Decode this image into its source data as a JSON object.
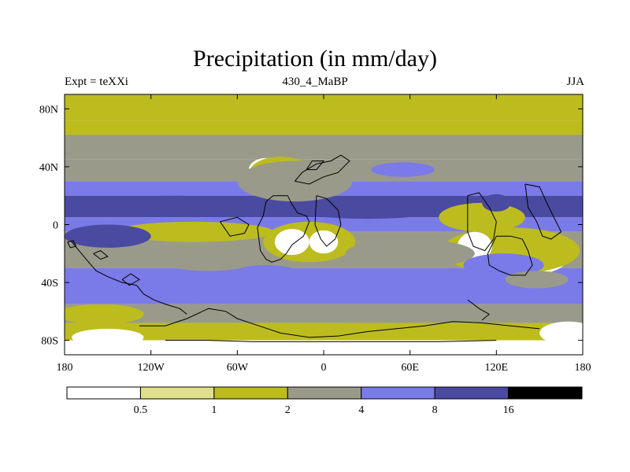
{
  "chart_data": {
    "type": "heatmap",
    "title": "Precipitation (in mm/day)",
    "subtitle_left": "Expt = teXXi",
    "subtitle_center": "430_4_MaBP",
    "subtitle_right": "JJA",
    "variable": "precipitation",
    "units": "mm/day",
    "x_range": [
      -180,
      180
    ],
    "y_range": [
      -90,
      90
    ],
    "x_ticks": [
      {
        "value": -180,
        "label": "180"
      },
      {
        "value": -120,
        "label": "120W"
      },
      {
        "value": -60,
        "label": "60W"
      },
      {
        "value": 0,
        "label": "0"
      },
      {
        "value": 60,
        "label": "60E"
      },
      {
        "value": 120,
        "label": "120E"
      },
      {
        "value": 180,
        "label": "180"
      }
    ],
    "y_ticks": [
      {
        "value": 80,
        "label": "80N"
      },
      {
        "value": 40,
        "label": "40N"
      },
      {
        "value": 0,
        "label": "0"
      },
      {
        "value": -40,
        "label": "40S"
      },
      {
        "value": -80,
        "label": "80S"
      }
    ],
    "levels": [
      0.5,
      1,
      2,
      4,
      8,
      16
    ],
    "level_labels": [
      "0.5",
      "1",
      "2",
      "4",
      "8",
      "16"
    ],
    "colors": [
      "#ffffff",
      "#e0e08a",
      "#bcbc1e",
      "#9a9a8a",
      "#7a7ae8",
      "#4a4aa0",
      "#000000"
    ],
    "zonal_bands": [
      {
        "lat_from": 90,
        "lat_to": 72,
        "mm_per_day": 1.0
      },
      {
        "lat_from": 72,
        "lat_to": 62,
        "mm_per_day": 1.5
      },
      {
        "lat_from": 62,
        "lat_to": 45,
        "mm_per_day": 3.0
      },
      {
        "lat_from": 45,
        "lat_to": 30,
        "mm_per_day": 2.5
      },
      {
        "lat_from": 30,
        "lat_to": 20,
        "mm_per_day": 5.0
      },
      {
        "lat_from": 20,
        "lat_to": 5,
        "mm_per_day": 8.0
      },
      {
        "lat_from": 5,
        "lat_to": -5,
        "mm_per_day": 5.0
      },
      {
        "lat_from": -5,
        "lat_to": -30,
        "mm_per_day": 2.5
      },
      {
        "lat_from": -30,
        "lat_to": -55,
        "mm_per_day": 5.0
      },
      {
        "lat_from": -55,
        "lat_to": -68,
        "mm_per_day": 3.0
      },
      {
        "lat_from": -68,
        "lat_to": -80,
        "mm_per_day": 1.5
      },
      {
        "lat_from": -80,
        "lat_to": -90,
        "mm_per_day": 0.3
      }
    ],
    "patches": [
      {
        "lon": -40,
        "lat": 38,
        "rx": 12,
        "ry": 8,
        "mm_per_day": 0.3
      },
      {
        "lon": -30,
        "lat": 35,
        "rx": 22,
        "ry": 12,
        "mm_per_day": 1.5
      },
      {
        "lon": -20,
        "lat": 30,
        "rx": 40,
        "ry": 14,
        "mm_per_day": 2.0
      },
      {
        "lon": -10,
        "lat": -12,
        "rx": 32,
        "ry": 14,
        "mm_per_day": 1.5
      },
      {
        "lon": -22,
        "lat": -12,
        "rx": 12,
        "ry": 9,
        "mm_per_day": 0.3
      },
      {
        "lon": 0,
        "lat": -12,
        "rx": 10,
        "ry": 8,
        "mm_per_day": 0.3
      },
      {
        "lon": 148,
        "lat": -22,
        "rx": 22,
        "ry": 12,
        "mm_per_day": 0.3
      },
      {
        "lon": 130,
        "lat": -18,
        "rx": 48,
        "ry": 16,
        "mm_per_day": 1.5
      },
      {
        "lon": 105,
        "lat": -15,
        "rx": 12,
        "ry": 10,
        "mm_per_day": 0.3
      },
      {
        "lon": -90,
        "lat": -5,
        "rx": 55,
        "ry": 7,
        "mm_per_day": 1.5
      },
      {
        "lon": -80,
        "lat": -22,
        "rx": 40,
        "ry": 10,
        "mm_per_day": 2.0
      },
      {
        "lon": 60,
        "lat": -20,
        "rx": 45,
        "ry": 10,
        "mm_per_day": 2.0
      },
      {
        "lon": -150,
        "lat": -8,
        "rx": 30,
        "ry": 8,
        "mm_per_day": 10.0
      },
      {
        "lon": -105,
        "lat": 14,
        "rx": 45,
        "ry": 6,
        "mm_per_day": 10.0
      },
      {
        "lon": 30,
        "lat": 10,
        "rx": 50,
        "ry": 6,
        "mm_per_day": 10.0
      },
      {
        "lon": 55,
        "lat": 38,
        "rx": 22,
        "ry": 5,
        "mm_per_day": 5.0
      },
      {
        "lon": 110,
        "lat": 5,
        "rx": 30,
        "ry": 10,
        "mm_per_day": 1.5
      },
      {
        "lon": 125,
        "lat": -28,
        "rx": 28,
        "ry": 8,
        "mm_per_day": 5.0
      },
      {
        "lon": 148,
        "lat": -38,
        "rx": 22,
        "ry": 6,
        "mm_per_day": 2.0
      },
      {
        "lon": -40,
        "lat": -35,
        "rx": 25,
        "ry": 7,
        "mm_per_day": 5.0
      },
      {
        "lon": -90,
        "lat": -60,
        "rx": 30,
        "ry": 5,
        "mm_per_day": 2.0
      },
      {
        "lon": -155,
        "lat": -62,
        "rx": 30,
        "ry": 7,
        "mm_per_day": 1.5
      },
      {
        "lon": 170,
        "lat": -75,
        "rx": 20,
        "ry": 8,
        "mm_per_day": 0.3
      },
      {
        "lon": -150,
        "lat": -78,
        "rx": 25,
        "ry": 6,
        "mm_per_day": 0.3
      },
      {
        "lon": 30,
        "lat": -73,
        "rx": 60,
        "ry": 5,
        "mm_per_day": 1.0
      },
      {
        "lon": 120,
        "lat": 15,
        "rx": 10,
        "ry": 6,
        "mm_per_day": 10.0
      },
      {
        "lon": 170,
        "lat": 12,
        "rx": 14,
        "ry": 6,
        "mm_per_day": 10.0
      }
    ],
    "coastlines": [
      [
        [
          -40,
          16
        ],
        [
          -35,
          20
        ],
        [
          -25,
          20
        ],
        [
          -22,
          14
        ],
        [
          -18,
          8
        ],
        [
          -12,
          6
        ],
        [
          -10,
          2
        ],
        [
          -14,
          -8
        ],
        [
          -22,
          -14
        ],
        [
          -26,
          -20
        ],
        [
          -30,
          -24
        ],
        [
          -36,
          -26
        ],
        [
          -40,
          -24
        ],
        [
          -44,
          -18
        ],
        [
          -45,
          -10
        ],
        [
          -46,
          -2
        ],
        [
          -42,
          6
        ],
        [
          -40,
          16
        ]
      ],
      [
        [
          -20,
          30
        ],
        [
          -15,
          36
        ],
        [
          -5,
          42
        ],
        [
          5,
          44
        ],
        [
          12,
          48
        ],
        [
          18,
          44
        ],
        [
          10,
          36
        ],
        [
          0,
          33
        ],
        [
          -10,
          28
        ],
        [
          -20,
          30
        ]
      ],
      [
        [
          -5,
          20
        ],
        [
          2,
          18
        ],
        [
          10,
          10
        ],
        [
          12,
          0
        ],
        [
          8,
          -10
        ],
        [
          2,
          -15
        ],
        [
          -2,
          -10
        ],
        [
          -6,
          0
        ],
        [
          -5,
          20
        ]
      ],
      [
        [
          100,
          20
        ],
        [
          108,
          22
        ],
        [
          115,
          12
        ],
        [
          120,
          2
        ],
        [
          118,
          -10
        ],
        [
          112,
          -18
        ],
        [
          104,
          -15
        ],
        [
          100,
          -5
        ],
        [
          100,
          20
        ]
      ],
      [
        [
          120,
          -8
        ],
        [
          130,
          -8
        ],
        [
          138,
          -10
        ],
        [
          142,
          -18
        ],
        [
          145,
          -28
        ],
        [
          140,
          -35
        ],
        [
          130,
          -35
        ],
        [
          122,
          -32
        ],
        [
          115,
          -28
        ],
        [
          114,
          -20
        ],
        [
          120,
          -8
        ]
      ],
      [
        [
          -175,
          -12
        ],
        [
          -170,
          -18
        ],
        [
          -165,
          -24
        ],
        [
          -158,
          -32
        ],
        [
          -150,
          -36
        ],
        [
          -140,
          -40
        ],
        [
          -130,
          -42
        ],
        [
          -125,
          -48
        ],
        [
          -118,
          -52
        ],
        [
          -110,
          -55
        ],
        [
          -100,
          -58
        ],
        [
          -95,
          -62
        ]
      ],
      [
        [
          -160,
          -20
        ],
        [
          -155,
          -24
        ],
        [
          -150,
          -22
        ],
        [
          -155,
          -18
        ],
        [
          -160,
          -20
        ]
      ],
      [
        [
          -140,
          -38
        ],
        [
          -135,
          -42
        ],
        [
          -128,
          -38
        ],
        [
          -134,
          -34
        ],
        [
          -140,
          -38
        ]
      ],
      [
        [
          -128,
          -70
        ],
        [
          -110,
          -70
        ],
        [
          -95,
          -65
        ],
        [
          -80,
          -58
        ],
        [
          -68,
          -60
        ],
        [
          -60,
          -65
        ],
        [
          -45,
          -70
        ],
        [
          -30,
          -75
        ],
        [
          -10,
          -78
        ],
        [
          10,
          -77
        ],
        [
          30,
          -74
        ],
        [
          50,
          -72
        ],
        [
          70,
          -70
        ],
        [
          90,
          -67
        ],
        [
          110,
          -68
        ],
        [
          130,
          -70
        ],
        [
          150,
          -72
        ]
      ],
      [
        [
          -110,
          -80
        ],
        [
          -80,
          -80
        ],
        [
          -50,
          -81
        ],
        [
          0,
          -81
        ],
        [
          40,
          -81
        ],
        [
          80,
          -81
        ],
        [
          120,
          -80
        ]
      ],
      [
        [
          100,
          -52
        ],
        [
          108,
          -58
        ],
        [
          115,
          -62
        ],
        [
          110,
          -66
        ]
      ],
      [
        [
          140,
          28
        ],
        [
          150,
          26
        ],
        [
          155,
          15
        ],
        [
          160,
          5
        ],
        [
          165,
          -5
        ],
        [
          158,
          -10
        ],
        [
          152,
          -8
        ],
        [
          148,
          2
        ],
        [
          142,
          12
        ],
        [
          140,
          28
        ]
      ],
      [
        [
          -178,
          -12
        ],
        [
          -176,
          -16
        ],
        [
          -172,
          -15
        ],
        [
          -174,
          -11
        ],
        [
          -178,
          -12
        ]
      ],
      [
        [
          -72,
          2
        ],
        [
          -60,
          5
        ],
        [
          -52,
          0
        ],
        [
          -55,
          -6
        ],
        [
          -65,
          -8
        ],
        [
          -72,
          2
        ]
      ],
      [
        [
          -12,
          38
        ],
        [
          -5,
          38
        ],
        [
          0,
          44
        ],
        [
          -8,
          44
        ],
        [
          -12,
          38
        ]
      ]
    ]
  }
}
